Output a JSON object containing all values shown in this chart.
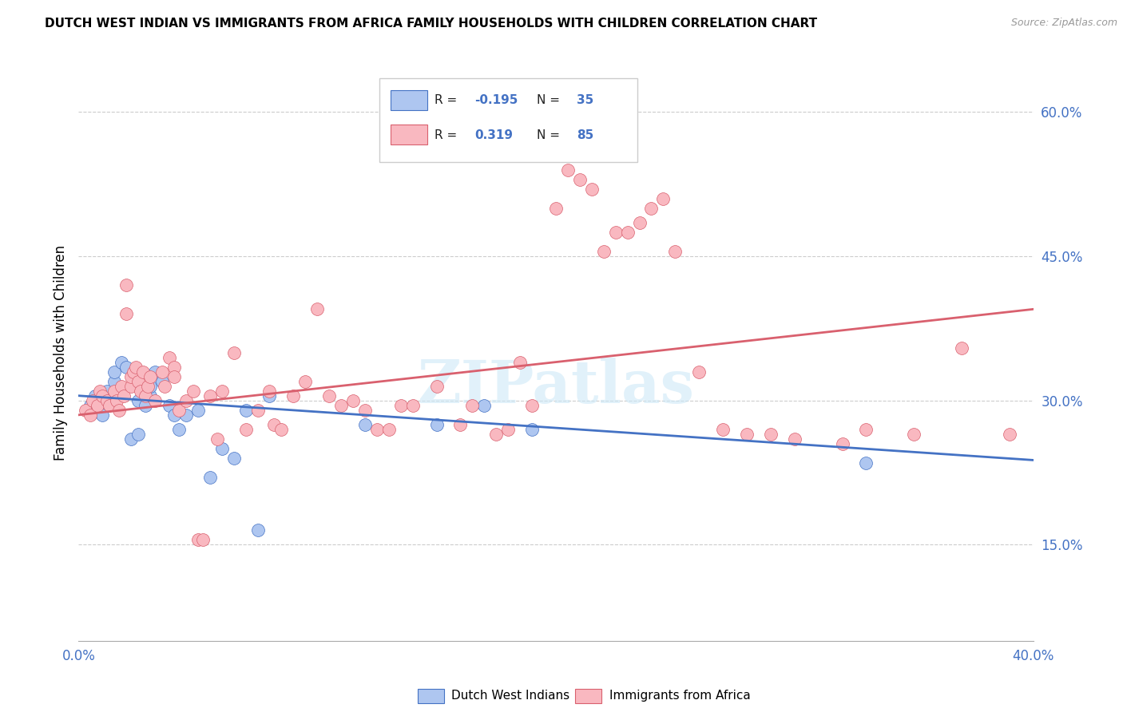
{
  "title": "DUTCH WEST INDIAN VS IMMIGRANTS FROM AFRICA FAMILY HOUSEHOLDS WITH CHILDREN CORRELATION CHART",
  "source": "Source: ZipAtlas.com",
  "ylabel": "Family Households with Children",
  "xlim": [
    0.0,
    0.4
  ],
  "ylim": [
    0.05,
    0.65
  ],
  "xticks": [
    0.0,
    0.05,
    0.1,
    0.15,
    0.2,
    0.25,
    0.3,
    0.35,
    0.4
  ],
  "yticks": [
    0.15,
    0.3,
    0.45,
    0.6
  ],
  "ytick_labels": [
    "15.0%",
    "30.0%",
    "45.0%",
    "60.0%"
  ],
  "series1_color": "#aec6f0",
  "series2_color": "#f9b8c0",
  "trendline1_color": "#4472c4",
  "trendline2_color": "#d9606e",
  "watermark": "ZIPatlas",
  "blue_scatter": [
    [
      0.005,
      0.295
    ],
    [
      0.007,
      0.305
    ],
    [
      0.008,
      0.29
    ],
    [
      0.009,
      0.3
    ],
    [
      0.01,
      0.285
    ],
    [
      0.012,
      0.31
    ],
    [
      0.015,
      0.32
    ],
    [
      0.015,
      0.33
    ],
    [
      0.018,
      0.34
    ],
    [
      0.02,
      0.335
    ],
    [
      0.022,
      0.26
    ],
    [
      0.025,
      0.265
    ],
    [
      0.025,
      0.3
    ],
    [
      0.028,
      0.31
    ],
    [
      0.028,
      0.295
    ],
    [
      0.03,
      0.305
    ],
    [
      0.03,
      0.315
    ],
    [
      0.032,
      0.33
    ],
    [
      0.035,
      0.32
    ],
    [
      0.038,
      0.295
    ],
    [
      0.04,
      0.285
    ],
    [
      0.042,
      0.27
    ],
    [
      0.045,
      0.285
    ],
    [
      0.05,
      0.29
    ],
    [
      0.055,
      0.22
    ],
    [
      0.06,
      0.25
    ],
    [
      0.065,
      0.24
    ],
    [
      0.07,
      0.29
    ],
    [
      0.075,
      0.165
    ],
    [
      0.08,
      0.305
    ],
    [
      0.12,
      0.275
    ],
    [
      0.15,
      0.275
    ],
    [
      0.17,
      0.295
    ],
    [
      0.19,
      0.27
    ],
    [
      0.33,
      0.235
    ]
  ],
  "pink_scatter": [
    [
      0.003,
      0.29
    ],
    [
      0.005,
      0.285
    ],
    [
      0.006,
      0.3
    ],
    [
      0.008,
      0.295
    ],
    [
      0.009,
      0.31
    ],
    [
      0.01,
      0.305
    ],
    [
      0.012,
      0.3
    ],
    [
      0.013,
      0.295
    ],
    [
      0.015,
      0.31
    ],
    [
      0.016,
      0.3
    ],
    [
      0.017,
      0.29
    ],
    [
      0.018,
      0.315
    ],
    [
      0.019,
      0.305
    ],
    [
      0.02,
      0.42
    ],
    [
      0.02,
      0.39
    ],
    [
      0.022,
      0.315
    ],
    [
      0.022,
      0.325
    ],
    [
      0.023,
      0.33
    ],
    [
      0.024,
      0.335
    ],
    [
      0.025,
      0.32
    ],
    [
      0.026,
      0.31
    ],
    [
      0.027,
      0.33
    ],
    [
      0.028,
      0.305
    ],
    [
      0.029,
      0.315
    ],
    [
      0.03,
      0.325
    ],
    [
      0.032,
      0.3
    ],
    [
      0.035,
      0.33
    ],
    [
      0.036,
      0.315
    ],
    [
      0.038,
      0.345
    ],
    [
      0.04,
      0.335
    ],
    [
      0.04,
      0.325
    ],
    [
      0.042,
      0.29
    ],
    [
      0.045,
      0.3
    ],
    [
      0.048,
      0.31
    ],
    [
      0.05,
      0.155
    ],
    [
      0.052,
      0.155
    ],
    [
      0.055,
      0.305
    ],
    [
      0.058,
      0.26
    ],
    [
      0.06,
      0.31
    ],
    [
      0.065,
      0.35
    ],
    [
      0.07,
      0.27
    ],
    [
      0.075,
      0.29
    ],
    [
      0.08,
      0.31
    ],
    [
      0.082,
      0.275
    ],
    [
      0.085,
      0.27
    ],
    [
      0.09,
      0.305
    ],
    [
      0.095,
      0.32
    ],
    [
      0.1,
      0.395
    ],
    [
      0.105,
      0.305
    ],
    [
      0.11,
      0.295
    ],
    [
      0.115,
      0.3
    ],
    [
      0.12,
      0.29
    ],
    [
      0.125,
      0.27
    ],
    [
      0.13,
      0.27
    ],
    [
      0.135,
      0.295
    ],
    [
      0.14,
      0.295
    ],
    [
      0.15,
      0.315
    ],
    [
      0.16,
      0.275
    ],
    [
      0.165,
      0.295
    ],
    [
      0.175,
      0.265
    ],
    [
      0.18,
      0.27
    ],
    [
      0.185,
      0.34
    ],
    [
      0.19,
      0.295
    ],
    [
      0.2,
      0.5
    ],
    [
      0.205,
      0.54
    ],
    [
      0.21,
      0.53
    ],
    [
      0.215,
      0.52
    ],
    [
      0.22,
      0.455
    ],
    [
      0.225,
      0.475
    ],
    [
      0.23,
      0.475
    ],
    [
      0.235,
      0.485
    ],
    [
      0.24,
      0.5
    ],
    [
      0.245,
      0.51
    ],
    [
      0.25,
      0.455
    ],
    [
      0.26,
      0.33
    ],
    [
      0.27,
      0.27
    ],
    [
      0.28,
      0.265
    ],
    [
      0.29,
      0.265
    ],
    [
      0.3,
      0.26
    ],
    [
      0.32,
      0.255
    ],
    [
      0.33,
      0.27
    ],
    [
      0.35,
      0.265
    ],
    [
      0.37,
      0.355
    ],
    [
      0.39,
      0.265
    ]
  ],
  "blue_line_x": [
    0.0,
    0.4
  ],
  "blue_line_y_start": 0.305,
  "blue_line_y_end": 0.238,
  "pink_line_x": [
    0.0,
    0.4
  ],
  "pink_line_y_start": 0.285,
  "pink_line_y_end": 0.395
}
